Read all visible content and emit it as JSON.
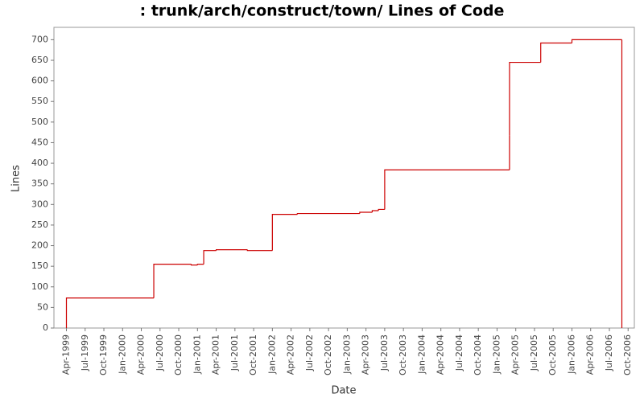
{
  "chart_data": {
    "type": "step",
    "title": ": trunk/arch/construct/town/ Lines of Code",
    "x_label": "Date",
    "y_label": "Lines",
    "x": [
      "1999-04",
      "1999-04",
      "2000-06",
      "2000-12",
      "2001-01",
      "2001-02",
      "2001-04",
      "2001-09",
      "2002-01",
      "2002-05",
      "2003-03",
      "2003-05",
      "2003-06",
      "2003-07",
      "2005-03",
      "2005-03",
      "2005-08",
      "2006-01",
      "2006-09"
    ],
    "series": [
      {
        "name": "Lines",
        "color": "#cc0000",
        "values": [
          0,
          73,
          155,
          153,
          155,
          188,
          190,
          188,
          276,
          278,
          281,
          285,
          288,
          384,
          468,
          645,
          692,
          700,
          0
        ]
      }
    ],
    "xlim": [
      "1999-02",
      "2006-11"
    ],
    "xticks": [
      {
        "value": "1999-04",
        "label": "Apr-1999"
      },
      {
        "value": "1999-07",
        "label": "Jul-1999"
      },
      {
        "value": "1999-10",
        "label": "Oct-1999"
      },
      {
        "value": "2000-01",
        "label": "Jan-2000"
      },
      {
        "value": "2000-04",
        "label": "Apr-2000"
      },
      {
        "value": "2000-07",
        "label": "Jul-2000"
      },
      {
        "value": "2000-10",
        "label": "Oct-2000"
      },
      {
        "value": "2001-01",
        "label": "Jan-2001"
      },
      {
        "value": "2001-04",
        "label": "Apr-2001"
      },
      {
        "value": "2001-07",
        "label": "Jul-2001"
      },
      {
        "value": "2001-10",
        "label": "Oct-2001"
      },
      {
        "value": "2002-01",
        "label": "Jan-2002"
      },
      {
        "value": "2002-04",
        "label": "Apr-2002"
      },
      {
        "value": "2002-07",
        "label": "Jul-2002"
      },
      {
        "value": "2002-10",
        "label": "Oct-2002"
      },
      {
        "value": "2003-01",
        "label": "Jan-2003"
      },
      {
        "value": "2003-04",
        "label": "Apr-2003"
      },
      {
        "value": "2003-07",
        "label": "Jul-2003"
      },
      {
        "value": "2003-10",
        "label": "Oct-2003"
      },
      {
        "value": "2004-01",
        "label": "Jan-2004"
      },
      {
        "value": "2004-04",
        "label": "Apr-2004"
      },
      {
        "value": "2004-07",
        "label": "Jul-2004"
      },
      {
        "value": "2004-10",
        "label": "Oct-2004"
      },
      {
        "value": "2005-01",
        "label": "Jan-2005"
      },
      {
        "value": "2005-04",
        "label": "Apr-2005"
      },
      {
        "value": "2005-07",
        "label": "Jul-2005"
      },
      {
        "value": "2005-10",
        "label": "Oct-2005"
      },
      {
        "value": "2006-01",
        "label": "Jan-2006"
      },
      {
        "value": "2006-04",
        "label": "Apr-2006"
      },
      {
        "value": "2006-07",
        "label": "Jul-2006"
      },
      {
        "value": "2006-10",
        "label": "Oct-2006"
      }
    ],
    "ylim": [
      0,
      730
    ],
    "yticks": [
      0,
      50,
      100,
      150,
      200,
      250,
      300,
      350,
      400,
      450,
      500,
      550,
      600,
      650,
      700
    ],
    "grid": false
  }
}
